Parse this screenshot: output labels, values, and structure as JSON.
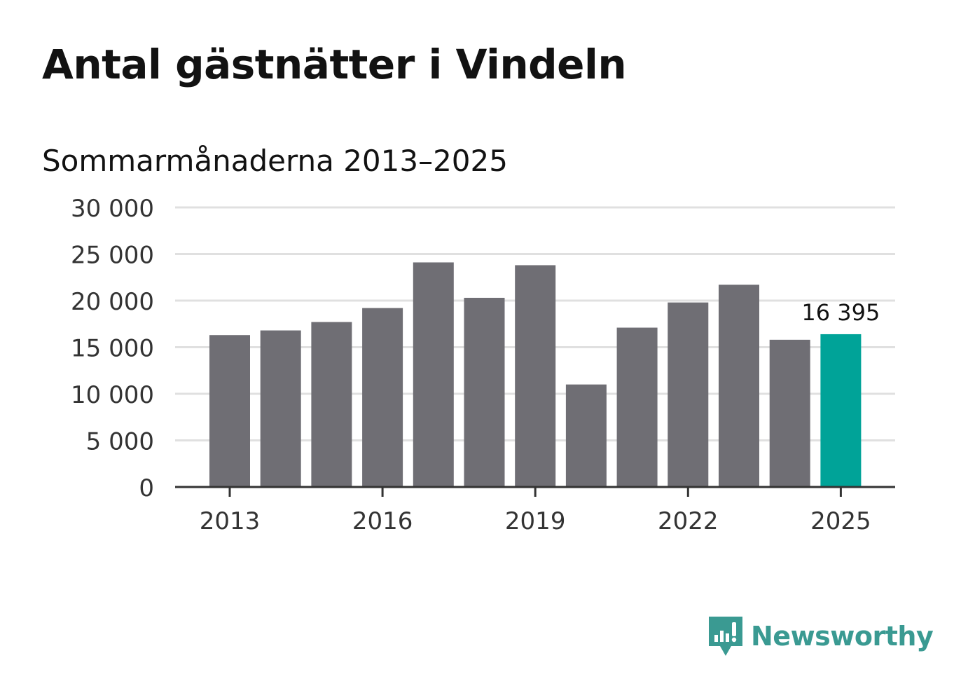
{
  "title": "Antal gästnätter i Vindeln",
  "subtitle": "Sommarmånaderna 2013–2025",
  "brand": {
    "name": "Newsworthy",
    "color": "#3a9a92"
  },
  "colors": {
    "bar": "#6f6e74",
    "highlight": "#00a398",
    "grid": "#e0e0e0",
    "axis": "#333333"
  },
  "chart_data": {
    "type": "bar",
    "categories": [
      "2013",
      "2014",
      "2015",
      "2016",
      "2017",
      "2018",
      "2019",
      "2020",
      "2021",
      "2022",
      "2023",
      "2024",
      "2025"
    ],
    "values": [
      16300,
      16800,
      17700,
      19200,
      24100,
      20300,
      23800,
      11000,
      17100,
      19800,
      21700,
      15800,
      16395
    ],
    "highlight_index": 12,
    "data_labels": [
      {
        "index": 12,
        "text": "16 395"
      }
    ],
    "ylim": [
      0,
      30000
    ],
    "yticks": [
      0,
      5000,
      10000,
      15000,
      20000,
      25000,
      30000
    ],
    "ytick_labels": [
      "0",
      "5 000",
      "10 000",
      "15 000",
      "20 000",
      "25 000",
      "30 000"
    ],
    "xtick_labels": [
      "2013",
      "2016",
      "2019",
      "2022",
      "2025"
    ],
    "grid": true,
    "xlabel": "",
    "ylabel": ""
  }
}
